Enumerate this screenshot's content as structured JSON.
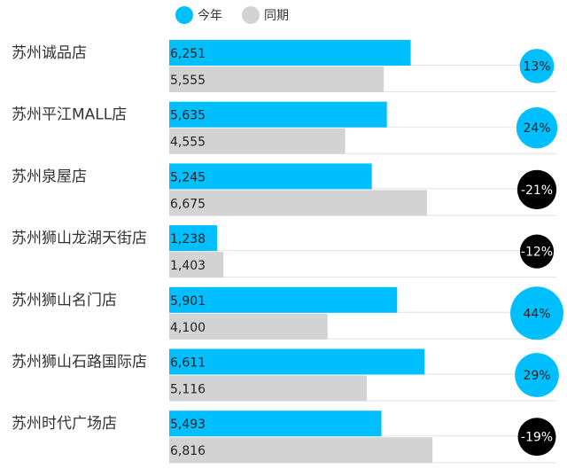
{
  "chart_data": {
    "type": "bar",
    "orientation": "horizontal",
    "legend": {
      "placement": "top",
      "items": [
        {
          "label": "今年",
          "color": "#00BFFF"
        },
        {
          "label": "同期",
          "color": "#D3D3D3"
        }
      ]
    },
    "categories": [
      "苏州诚品店",
      "苏州平江MALL店",
      "苏州泉屋店",
      "苏州狮山龙湖天街店",
      "苏州狮山名门店",
      "苏州狮山石路国际店",
      "苏州时代广场店"
    ],
    "series": [
      {
        "name": "今年",
        "color": "#00BFFF",
        "values": [
          6251,
          5635,
          5245,
          1238,
          5901,
          6611,
          5493
        ],
        "labels": [
          "6,251",
          "5,635",
          "5,245",
          "1,238",
          "5,901",
          "6,611",
          "5,493"
        ]
      },
      {
        "name": "同期",
        "color": "#D3D3D3",
        "values": [
          5555,
          4555,
          6675,
          1403,
          4100,
          5116,
          6816
        ],
        "labels": [
          "5,555",
          "4,555",
          "6,675",
          "1,403",
          "4,100",
          "5,116",
          "6,816"
        ]
      }
    ],
    "growth": {
      "values": [
        13,
        24,
        -21,
        -12,
        44,
        29,
        -19
      ],
      "labels": [
        "13%",
        "24%",
        "-21%",
        "-12%",
        "44%",
        "29%",
        "-19%"
      ],
      "positive_color": "#00BFFF",
      "negative_color": "#000000",
      "positive_text_color": "#222222",
      "negative_text_color": "#ffffff"
    },
    "xlim": [
      0,
      10000
    ],
    "grid": false
  }
}
